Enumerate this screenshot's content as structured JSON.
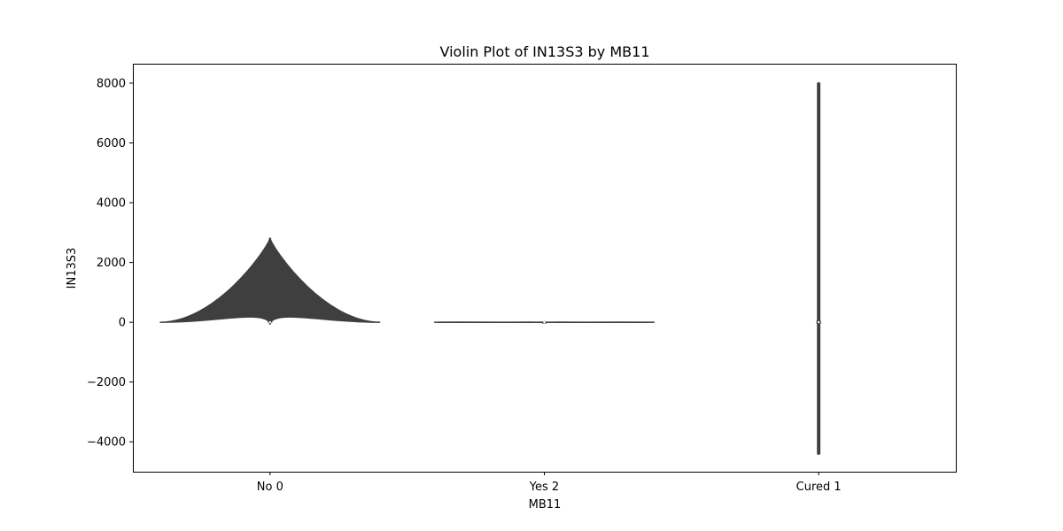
{
  "chart_data": {
    "type": "violin",
    "title": "Violin Plot of IN13S3 by MB11",
    "xlabel": "MB11",
    "ylabel": "IN13S3",
    "categories": [
      "No 0",
      "Yes 2",
      "Cured 1"
    ],
    "ylim": [
      -5000,
      8650
    ],
    "yticks": [
      -4000,
      -2000,
      0,
      2000,
      4000,
      6000,
      8000
    ],
    "ytick_labels": [
      "−4000",
      "−2000",
      "0",
      "2000",
      "4000",
      "6000",
      "8000"
    ],
    "grid": false,
    "legend": "none",
    "violins": [
      {
        "category": "No 0",
        "min": -40,
        "max": 2800,
        "median": 0,
        "q1": -5,
        "q3": 30,
        "half_width": 0.4
      },
      {
        "category": "Yes 2",
        "min": -5,
        "max": 5,
        "median": 0,
        "q1": -2,
        "q3": 2,
        "half_width": 0.4
      },
      {
        "category": "Cured 1",
        "min": -4400,
        "max": 8000,
        "median": 0,
        "q1": -50,
        "q3": 50,
        "half_width": 0.004
      }
    ],
    "colors": {
      "violin_edge": "#3f3f3f",
      "violin_fill": "#3f3f3f",
      "axes": "#000000"
    }
  }
}
